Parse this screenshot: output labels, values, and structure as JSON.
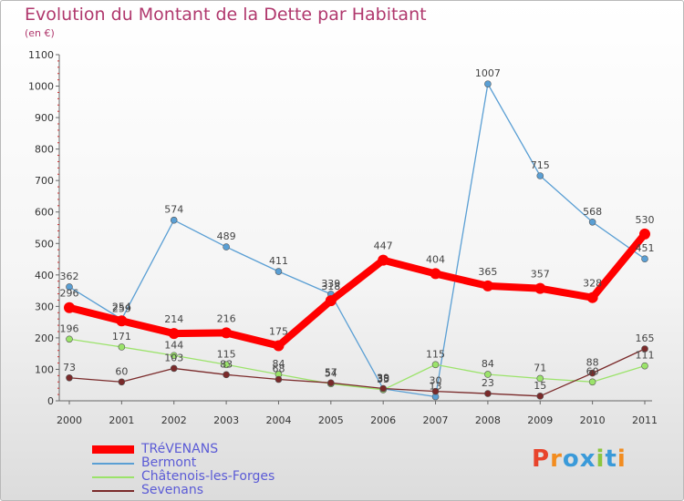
{
  "header": {
    "title": "Evolution du Montant de la Dette par Habitant",
    "subtitle": "(en €)"
  },
  "logo": {
    "letters": [
      "P",
      "r",
      "o",
      "x",
      "i",
      "t",
      "i"
    ],
    "colors": [
      "#e8442c",
      "#f28c1f",
      "#3a9ad9",
      "#3a9ad9",
      "#8cc63f",
      "#3a9ad9",
      "#f28c1f"
    ]
  },
  "chart_data": {
    "type": "line",
    "title": "Evolution du Montant de la Dette par Habitant",
    "ylabel": "(en €)",
    "xlabel": "",
    "categories": [
      "2000",
      "2001",
      "2002",
      "2003",
      "2004",
      "2005",
      "2006",
      "2007",
      "2008",
      "2009",
      "2010",
      "2011"
    ],
    "ylim": [
      0,
      1100
    ],
    "yticks": [
      0,
      100,
      200,
      300,
      400,
      500,
      600,
      700,
      800,
      900,
      1000,
      1100
    ],
    "grid": false,
    "legend_position": "bottom-left",
    "series": [
      {
        "name": "TRéVENANS",
        "color": "#ff0000",
        "values": [
          296,
          254,
          214,
          216,
          175,
          318,
          447,
          404,
          365,
          357,
          328,
          530
        ]
      },
      {
        "name": "Bermont",
        "color": "#5a9fd4",
        "values": [
          362,
          259,
          574,
          489,
          411,
          339,
          38,
          13,
          1007,
          715,
          568,
          451
        ]
      },
      {
        "name": "Châtenois-les-Forges",
        "color": "#9be36a",
        "values": [
          196,
          171,
          144,
          115,
          84,
          54,
          35,
          115,
          84,
          71,
          60,
          111
        ]
      },
      {
        "name": "Sevenans",
        "color": "#7a2a2a",
        "values": [
          73,
          60,
          103,
          83,
          68,
          57,
          39,
          30,
          23,
          15,
          88,
          165
        ]
      }
    ]
  }
}
